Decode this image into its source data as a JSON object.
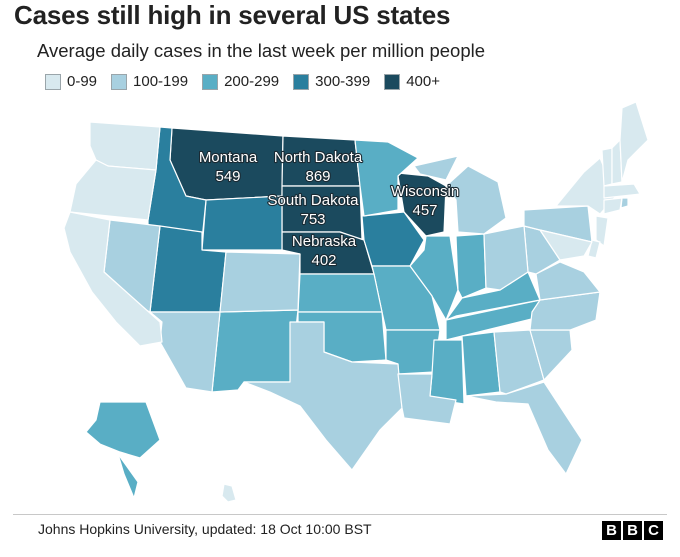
{
  "title": "Cases still high in several US states",
  "subtitle": "Average daily cases in the last week per million people",
  "legend": [
    {
      "label": "0-99",
      "color": "#d8e9ef"
    },
    {
      "label": "100-199",
      "color": "#a8d0e0"
    },
    {
      "label": "200-299",
      "color": "#59aec5"
    },
    {
      "label": "300-399",
      "color": "#2a7f9e"
    },
    {
      "label": "400+",
      "color": "#1b4a5e"
    }
  ],
  "states": [
    {
      "name": "Montana",
      "value": "549",
      "bin": 4
    },
    {
      "name": "North Dakota",
      "value": "869",
      "bin": 4
    },
    {
      "name": "South Dakota",
      "value": "753",
      "bin": 4
    },
    {
      "name": "Wisconsin",
      "value": "457",
      "bin": 4
    },
    {
      "name": "Nebraska",
      "value": "402",
      "bin": 4
    },
    {
      "name": "Iowa",
      "bin": 3
    },
    {
      "name": "Wyoming",
      "bin": 3
    },
    {
      "name": "Idaho",
      "bin": 3
    },
    {
      "name": "Utah",
      "bin": 3
    },
    {
      "name": "Minnesota",
      "bin": 2
    },
    {
      "name": "Illinois",
      "bin": 2
    },
    {
      "name": "Indiana",
      "bin": 2
    },
    {
      "name": "Missouri",
      "bin": 2
    },
    {
      "name": "Kansas",
      "bin": 2
    },
    {
      "name": "Oklahoma",
      "bin": 2
    },
    {
      "name": "Arkansas",
      "bin": 2
    },
    {
      "name": "Tennessee",
      "bin": 2
    },
    {
      "name": "Kentucky",
      "bin": 2
    },
    {
      "name": "Mississippi",
      "bin": 2
    },
    {
      "name": "Alabama",
      "bin": 2
    },
    {
      "name": "New Mexico",
      "bin": 2
    },
    {
      "name": "Alaska",
      "bin": 2
    },
    {
      "name": "Nevada",
      "bin": 1
    },
    {
      "name": "Colorado",
      "bin": 1
    },
    {
      "name": "Arizona",
      "bin": 1
    },
    {
      "name": "Texas",
      "bin": 1
    },
    {
      "name": "Louisiana",
      "bin": 1
    },
    {
      "name": "Florida",
      "bin": 1
    },
    {
      "name": "Georgia",
      "bin": 1
    },
    {
      "name": "South Carolina",
      "bin": 1
    },
    {
      "name": "North Carolina",
      "bin": 1
    },
    {
      "name": "Virginia",
      "bin": 1
    },
    {
      "name": "West Virginia",
      "bin": 1
    },
    {
      "name": "Ohio",
      "bin": 1
    },
    {
      "name": "Michigan",
      "bin": 1
    },
    {
      "name": "Pennsylvania",
      "bin": 1
    },
    {
      "name": "Rhode Island",
      "bin": 1
    },
    {
      "name": "Washington",
      "bin": 0
    },
    {
      "name": "Oregon",
      "bin": 0
    },
    {
      "name": "California",
      "bin": 0
    },
    {
      "name": "New York",
      "bin": 0
    },
    {
      "name": "Vermont",
      "bin": 0
    },
    {
      "name": "New Hampshire",
      "bin": 0
    },
    {
      "name": "Maine",
      "bin": 0
    },
    {
      "name": "Massachusetts",
      "bin": 0
    },
    {
      "name": "Connecticut",
      "bin": 0
    },
    {
      "name": "New Jersey",
      "bin": 0
    },
    {
      "name": "Delaware",
      "bin": 0
    },
    {
      "name": "Maryland",
      "bin": 0
    },
    {
      "name": "Hawaii",
      "bin": 0
    }
  ],
  "source": "Johns Hopkins University, updated: 18 Oct 10:00 BST",
  "brand": [
    "B",
    "B",
    "C"
  ]
}
